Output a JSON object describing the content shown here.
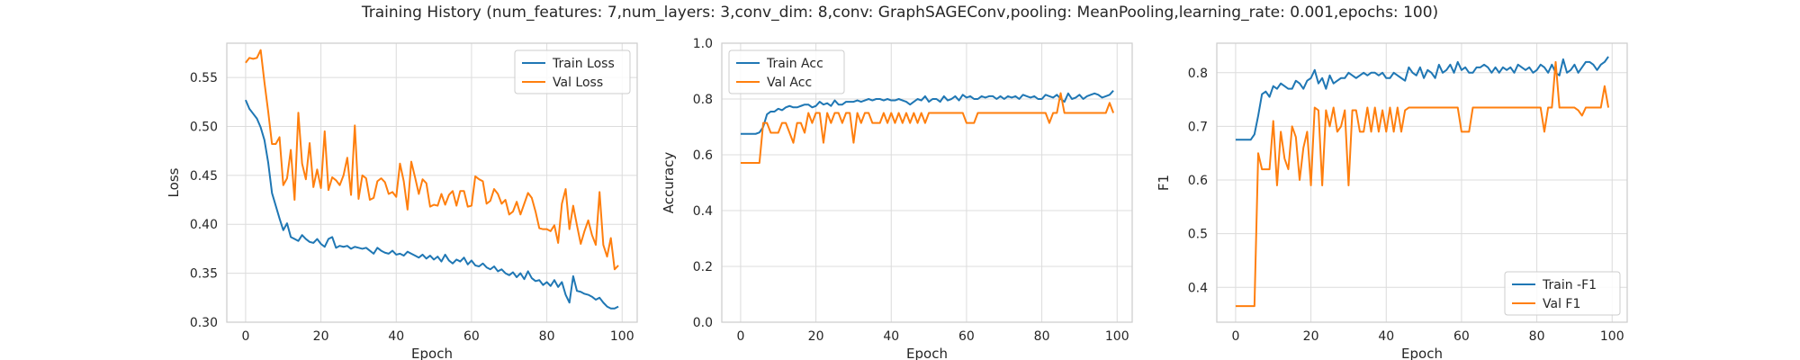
{
  "figure": {
    "title": "Training History (num_features: 7,num_layers: 3,conv_dim: 8,conv: GraphSAGEConv,pooling: MeanPooling,learning_rate: 0.001,epochs: 100)",
    "colors": {
      "train": "#1f77b4",
      "val": "#ff7f0e",
      "grid": "#dcdcdc",
      "axes_edge": "#cccccc"
    }
  },
  "chart_data": [
    {
      "type": "line",
      "id": "loss",
      "xlabel": "Epoch",
      "ylabel": "Loss",
      "xlim": [
        -5,
        104
      ],
      "ylim": [
        0.3,
        0.585
      ],
      "xticks": [
        0,
        20,
        40,
        60,
        80,
        100
      ],
      "xtick_labels": [
        "0",
        "20",
        "40",
        "60",
        "80",
        "100"
      ],
      "yticks": [
        0.3,
        0.35,
        0.4,
        0.45,
        0.5,
        0.55
      ],
      "ytick_labels": [
        "0.30",
        "0.35",
        "0.40",
        "0.45",
        "0.50",
        "0.55"
      ],
      "legend": "upper-right",
      "grid": true,
      "series": [
        {
          "name": "Train Loss",
          "color": "#1f77b4",
          "values": [
            0.527,
            0.518,
            0.513,
            0.508,
            0.499,
            0.486,
            0.463,
            0.432,
            0.419,
            0.406,
            0.394,
            0.401,
            0.387,
            0.385,
            0.383,
            0.389,
            0.385,
            0.382,
            0.381,
            0.385,
            0.38,
            0.377,
            0.385,
            0.387,
            0.376,
            0.378,
            0.377,
            0.378,
            0.375,
            0.377,
            0.376,
            0.375,
            0.376,
            0.373,
            0.37,
            0.376,
            0.373,
            0.371,
            0.37,
            0.373,
            0.369,
            0.37,
            0.368,
            0.372,
            0.37,
            0.368,
            0.366,
            0.369,
            0.365,
            0.368,
            0.364,
            0.367,
            0.362,
            0.369,
            0.363,
            0.36,
            0.364,
            0.362,
            0.366,
            0.359,
            0.363,
            0.358,
            0.357,
            0.36,
            0.356,
            0.354,
            0.357,
            0.352,
            0.354,
            0.35,
            0.348,
            0.351,
            0.346,
            0.35,
            0.344,
            0.352,
            0.345,
            0.342,
            0.343,
            0.338,
            0.341,
            0.337,
            0.343,
            0.336,
            0.341,
            0.328,
            0.32,
            0.347,
            0.332,
            0.331,
            0.329,
            0.328,
            0.326,
            0.323,
            0.325,
            0.32,
            0.316,
            0.314,
            0.314,
            0.316
          ]
        },
        {
          "name": "Val Loss",
          "color": "#ff7f0e",
          "values": [
            0.565,
            0.57,
            0.569,
            0.57,
            0.578,
            0.545,
            0.515,
            0.482,
            0.482,
            0.489,
            0.44,
            0.447,
            0.476,
            0.425,
            0.514,
            0.462,
            0.446,
            0.483,
            0.438,
            0.456,
            0.437,
            0.495,
            0.435,
            0.448,
            0.445,
            0.44,
            0.45,
            0.468,
            0.43,
            0.501,
            0.426,
            0.45,
            0.447,
            0.425,
            0.427,
            0.444,
            0.447,
            0.443,
            0.431,
            0.433,
            0.428,
            0.462,
            0.444,
            0.415,
            0.464,
            0.448,
            0.431,
            0.446,
            0.442,
            0.418,
            0.42,
            0.419,
            0.431,
            0.42,
            0.43,
            0.434,
            0.419,
            0.434,
            0.434,
            0.418,
            0.419,
            0.449,
            0.446,
            0.444,
            0.421,
            0.424,
            0.436,
            0.431,
            0.421,
            0.425,
            0.41,
            0.413,
            0.423,
            0.41,
            0.421,
            0.432,
            0.427,
            0.413,
            0.396,
            0.395,
            0.395,
            0.393,
            0.399,
            0.381,
            0.421,
            0.436,
            0.395,
            0.419,
            0.399,
            0.38,
            0.393,
            0.404,
            0.389,
            0.379,
            0.433,
            0.379,
            0.367,
            0.386,
            0.354,
            0.358
          ]
        }
      ]
    },
    {
      "type": "line",
      "id": "accuracy",
      "xlabel": "Epoch",
      "ylabel": "Accuracy",
      "xlim": [
        -5,
        104
      ],
      "ylim": [
        0.0,
        1.0
      ],
      "xticks": [
        0,
        20,
        40,
        60,
        80,
        100
      ],
      "xtick_labels": [
        "0",
        "20",
        "40",
        "60",
        "80",
        "100"
      ],
      "yticks": [
        0.0,
        0.2,
        0.4,
        0.6,
        0.8,
        1.0
      ],
      "ytick_labels": [
        "0.0",
        "0.2",
        "0.4",
        "0.6",
        "0.8",
        "1.0"
      ],
      "legend": "upper-left",
      "grid": true,
      "series": [
        {
          "name": "Train Acc",
          "color": "#1f77b4",
          "values": [
            0.675,
            0.675,
            0.675,
            0.675,
            0.675,
            0.68,
            0.7,
            0.745,
            0.755,
            0.755,
            0.765,
            0.76,
            0.77,
            0.775,
            0.77,
            0.77,
            0.775,
            0.78,
            0.78,
            0.77,
            0.775,
            0.79,
            0.78,
            0.785,
            0.775,
            0.795,
            0.78,
            0.78,
            0.79,
            0.79,
            0.79,
            0.795,
            0.79,
            0.795,
            0.8,
            0.795,
            0.8,
            0.8,
            0.795,
            0.8,
            0.795,
            0.795,
            0.8,
            0.795,
            0.79,
            0.78,
            0.79,
            0.8,
            0.795,
            0.81,
            0.79,
            0.8,
            0.8,
            0.79,
            0.81,
            0.795,
            0.8,
            0.81,
            0.795,
            0.815,
            0.805,
            0.81,
            0.8,
            0.8,
            0.81,
            0.805,
            0.81,
            0.81,
            0.8,
            0.81,
            0.8,
            0.81,
            0.805,
            0.81,
            0.8,
            0.815,
            0.81,
            0.805,
            0.81,
            0.8,
            0.8,
            0.815,
            0.81,
            0.805,
            0.815,
            0.8,
            0.79,
            0.82,
            0.8,
            0.805,
            0.815,
            0.8,
            0.81,
            0.815,
            0.82,
            0.815,
            0.805,
            0.81,
            0.815,
            0.83
          ]
        },
        {
          "name": "Val Acc",
          "color": "#ff7f0e",
          "values": [
            0.571,
            0.571,
            0.571,
            0.571,
            0.571,
            0.571,
            0.714,
            0.714,
            0.679,
            0.679,
            0.679,
            0.714,
            0.714,
            0.679,
            0.643,
            0.714,
            0.714,
            0.679,
            0.75,
            0.714,
            0.75,
            0.75,
            0.643,
            0.75,
            0.714,
            0.75,
            0.75,
            0.714,
            0.75,
            0.75,
            0.643,
            0.75,
            0.714,
            0.75,
            0.75,
            0.714,
            0.714,
            0.714,
            0.75,
            0.714,
            0.75,
            0.714,
            0.75,
            0.714,
            0.75,
            0.714,
            0.75,
            0.714,
            0.75,
            0.714,
            0.75,
            0.75,
            0.75,
            0.75,
            0.75,
            0.75,
            0.75,
            0.75,
            0.75,
            0.75,
            0.714,
            0.714,
            0.714,
            0.75,
            0.75,
            0.75,
            0.75,
            0.75,
            0.75,
            0.75,
            0.75,
            0.75,
            0.75,
            0.75,
            0.75,
            0.75,
            0.75,
            0.75,
            0.75,
            0.75,
            0.75,
            0.75,
            0.714,
            0.75,
            0.75,
            0.821,
            0.75,
            0.75,
            0.75,
            0.75,
            0.75,
            0.75,
            0.75,
            0.75,
            0.75,
            0.75,
            0.75,
            0.75,
            0.786,
            0.75
          ]
        }
      ]
    },
    {
      "type": "line",
      "id": "f1",
      "xlabel": "Epoch",
      "ylabel": "F1",
      "xlim": [
        -5,
        104
      ],
      "ylim": [
        0.335,
        0.855
      ],
      "xticks": [
        0,
        20,
        40,
        60,
        80,
        100
      ],
      "xtick_labels": [
        "0",
        "20",
        "40",
        "60",
        "80",
        "100"
      ],
      "yticks": [
        0.4,
        0.5,
        0.6,
        0.7,
        0.8
      ],
      "ytick_labels": [
        "0.4",
        "0.5",
        "0.6",
        "0.7",
        "0.8"
      ],
      "legend": "lower-right",
      "grid": true,
      "series": [
        {
          "name": "Train -F1",
          "color": "#1f77b4",
          "values": [
            0.675,
            0.675,
            0.675,
            0.675,
            0.675,
            0.685,
            0.72,
            0.76,
            0.765,
            0.755,
            0.775,
            0.77,
            0.78,
            0.775,
            0.77,
            0.77,
            0.785,
            0.78,
            0.77,
            0.785,
            0.79,
            0.805,
            0.78,
            0.79,
            0.77,
            0.795,
            0.78,
            0.785,
            0.79,
            0.79,
            0.8,
            0.795,
            0.79,
            0.795,
            0.8,
            0.795,
            0.8,
            0.8,
            0.795,
            0.8,
            0.79,
            0.79,
            0.8,
            0.795,
            0.79,
            0.785,
            0.81,
            0.8,
            0.795,
            0.81,
            0.79,
            0.805,
            0.8,
            0.79,
            0.815,
            0.8,
            0.805,
            0.815,
            0.8,
            0.82,
            0.805,
            0.81,
            0.8,
            0.8,
            0.81,
            0.81,
            0.815,
            0.81,
            0.8,
            0.81,
            0.8,
            0.81,
            0.805,
            0.81,
            0.8,
            0.815,
            0.81,
            0.805,
            0.81,
            0.8,
            0.805,
            0.815,
            0.81,
            0.8,
            0.815,
            0.8,
            0.795,
            0.825,
            0.8,
            0.805,
            0.815,
            0.8,
            0.81,
            0.82,
            0.82,
            0.815,
            0.805,
            0.815,
            0.82,
            0.83
          ]
        },
        {
          "name": "Val F1",
          "color": "#ff7f0e",
          "values": [
            0.365,
            0.365,
            0.365,
            0.365,
            0.365,
            0.365,
            0.65,
            0.62,
            0.62,
            0.62,
            0.71,
            0.59,
            0.69,
            0.64,
            0.62,
            0.7,
            0.68,
            0.6,
            0.66,
            0.69,
            0.59,
            0.735,
            0.73,
            0.59,
            0.73,
            0.7,
            0.735,
            0.69,
            0.7,
            0.73,
            0.59,
            0.73,
            0.73,
            0.69,
            0.69,
            0.735,
            0.69,
            0.735,
            0.69,
            0.73,
            0.69,
            0.735,
            0.69,
            0.735,
            0.69,
            0.73,
            0.735,
            0.735,
            0.735,
            0.735,
            0.735,
            0.735,
            0.735,
            0.735,
            0.735,
            0.735,
            0.735,
            0.735,
            0.735,
            0.735,
            0.69,
            0.69,
            0.69,
            0.735,
            0.735,
            0.735,
            0.735,
            0.735,
            0.735,
            0.735,
            0.735,
            0.735,
            0.735,
            0.735,
            0.735,
            0.735,
            0.735,
            0.735,
            0.735,
            0.735,
            0.735,
            0.735,
            0.69,
            0.735,
            0.735,
            0.82,
            0.735,
            0.735,
            0.735,
            0.735,
            0.735,
            0.73,
            0.72,
            0.735,
            0.735,
            0.735,
            0.735,
            0.735,
            0.775,
            0.735
          ]
        }
      ]
    }
  ]
}
